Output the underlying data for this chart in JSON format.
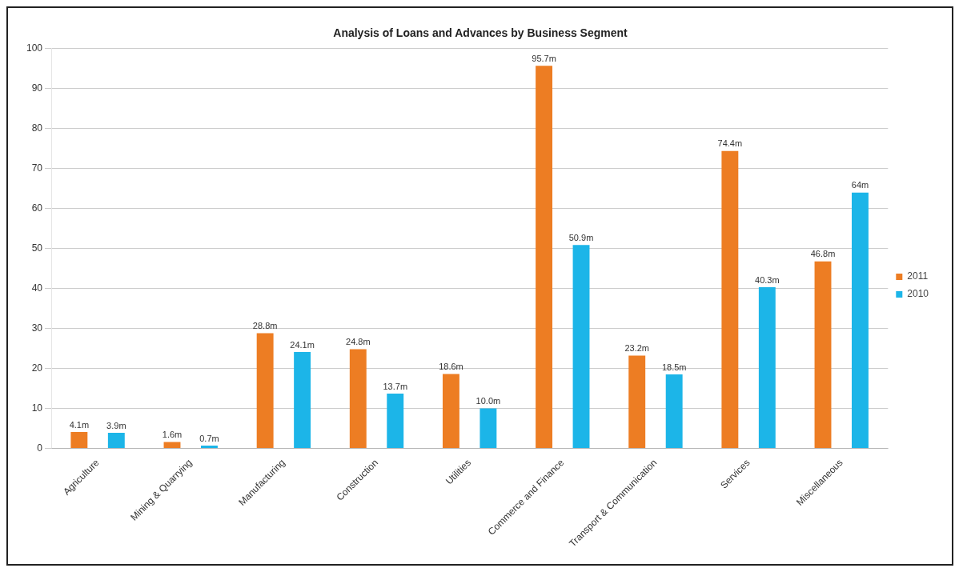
{
  "chart_data": {
    "type": "bar",
    "title": "Analysis of Loans and Advances by Business Segment",
    "categories": [
      "Agriculture",
      "Mining & Quarrying",
      "Manufacturing",
      "Construction",
      "Utilities",
      "Commerce and Finance",
      "Transport & Communication",
      "Services",
      "Miscellaneous"
    ],
    "series": [
      {
        "name": "2011",
        "color": "#ed7d23",
        "values": [
          4.1,
          1.6,
          28.8,
          24.8,
          18.6,
          95.7,
          23.2,
          74.4,
          46.8
        ],
        "value_labels": [
          "4.1m",
          "1.6m",
          "28.8m",
          "24.8m",
          "18.6m",
          "95.7m",
          "23.2m",
          "74.4m",
          "46.8m"
        ]
      },
      {
        "name": "2010",
        "color": "#1cb5e8",
        "values": [
          3.9,
          0.7,
          24.1,
          13.7,
          10.0,
          50.9,
          18.5,
          40.3,
          64
        ],
        "value_labels": [
          "3.9m",
          "0.7m",
          "24.1m",
          "13.7m",
          "10.0m",
          "50.9m",
          "18.5m",
          "40.3m",
          "64m"
        ]
      }
    ],
    "ylim": [
      0,
      100
    ],
    "yticks": [
      0,
      10,
      20,
      30,
      40,
      50,
      60,
      70,
      80,
      90,
      100
    ],
    "grid": "y",
    "legend": "right"
  }
}
